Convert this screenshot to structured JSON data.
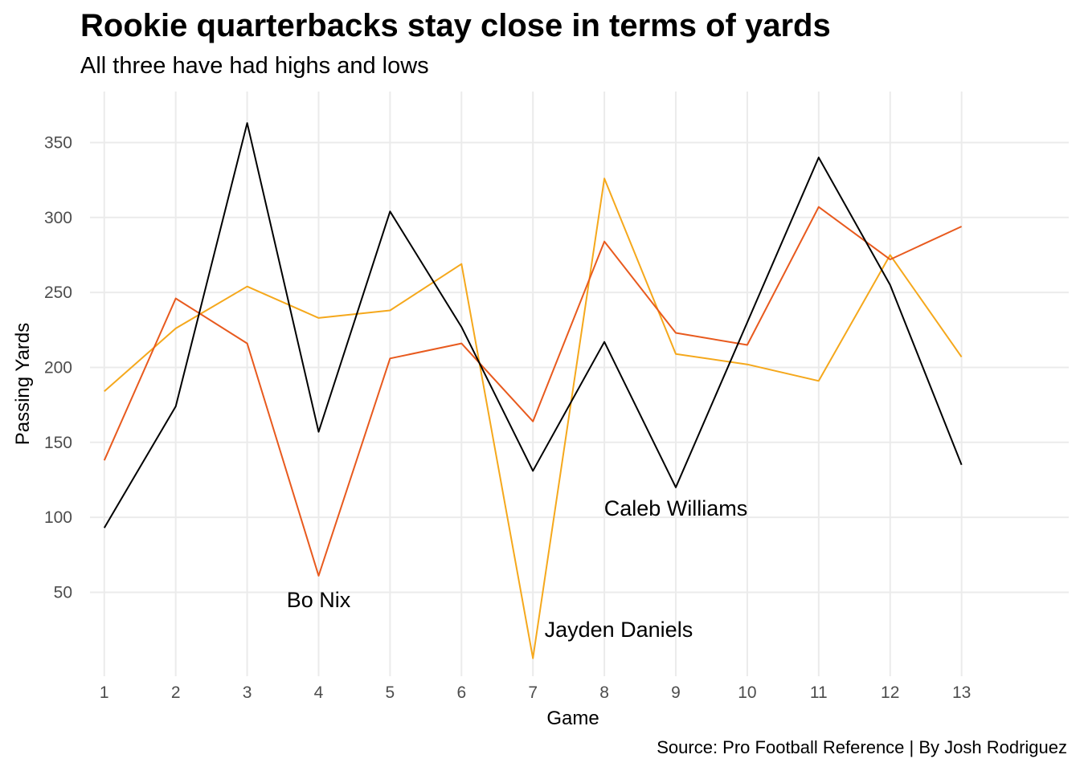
{
  "chart_data": {
    "type": "line",
    "title": "Rookie quarterbacks stay close in terms of yards",
    "subtitle": "All three have had highs and lows",
    "caption": "Source: Pro Football Reference | By Josh Rodriguez",
    "xlabel": "Game",
    "ylabel": "Passing Yards",
    "x": [
      1,
      2,
      3,
      4,
      5,
      6,
      7,
      8,
      9,
      10,
      11,
      12,
      13
    ],
    "xlim": [
      0.8,
      14.5
    ],
    "ylim": [
      -6,
      384
    ],
    "yticks": [
      50,
      100,
      150,
      200,
      250,
      300,
      350
    ],
    "grid": true,
    "legend": "none",
    "series": [
      {
        "name": "Caleb Williams",
        "color": "#000000",
        "values": [
          93,
          174,
          363,
          157,
          304,
          227,
          131,
          217,
          120,
          230,
          340,
          255,
          135
        ]
      },
      {
        "name": "Bo Nix",
        "color": "#E85A1E",
        "values": [
          138,
          246,
          216,
          61,
          206,
          216,
          164,
          284,
          223,
          215,
          307,
          272,
          294
        ]
      },
      {
        "name": "Jayden Daniels",
        "color": "#F5A81C",
        "values": [
          184,
          226,
          254,
          233,
          238,
          269,
          6,
          326,
          209,
          202,
          191,
          275,
          207
        ]
      }
    ],
    "annotations": [
      {
        "label": "Bo Nix",
        "x": 4,
        "y": 45
      },
      {
        "label": "Jayden Daniels",
        "x": 8.2,
        "y": 25
      },
      {
        "label": "Caleb Williams",
        "x": 9,
        "y": 106
      }
    ]
  }
}
